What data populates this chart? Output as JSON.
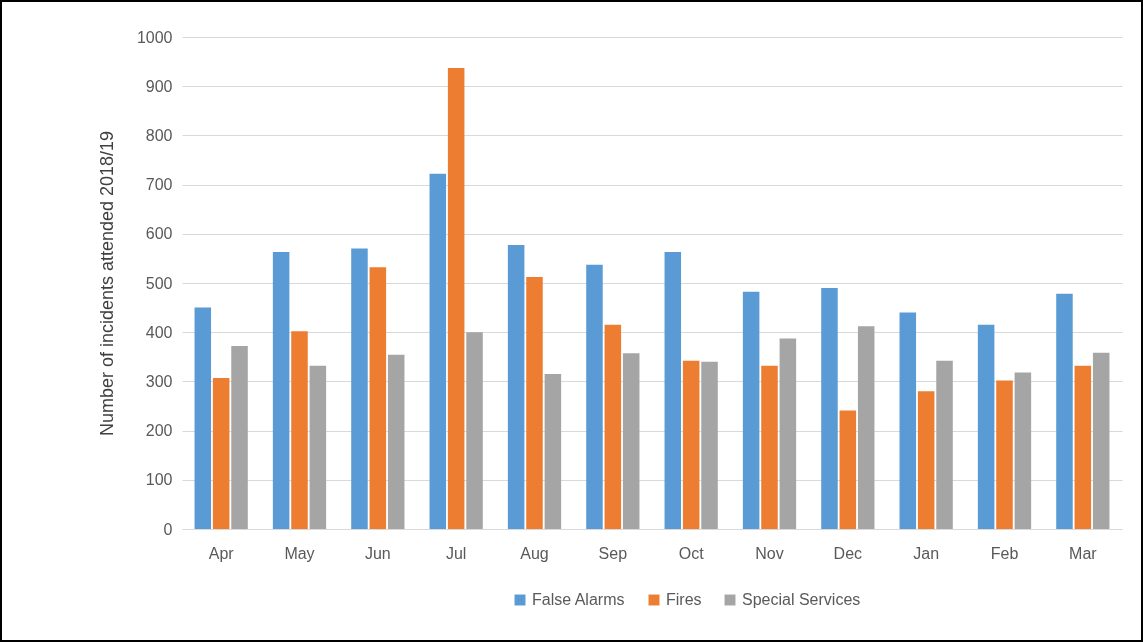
{
  "chart_data": {
    "type": "bar",
    "ylabel": "Number of incidents attended 2018/19",
    "categories": [
      "Apr",
      "May",
      "Jun",
      "Jul",
      "Aug",
      "Sep",
      "Oct",
      "Nov",
      "Dec",
      "Jan",
      "Feb",
      "Mar"
    ],
    "series": [
      {
        "name": "False Alarms",
        "color": "#5b9bd5",
        "values": [
          450,
          563,
          570,
          722,
          577,
          537,
          563,
          482,
          490,
          440,
          415,
          478
        ]
      },
      {
        "name": "Fires",
        "color": "#ed7d31",
        "values": [
          307,
          402,
          532,
          937,
          512,
          415,
          342,
          332,
          241,
          280,
          302,
          332
        ]
      },
      {
        "name": "Special Services",
        "color": "#a5a5a5",
        "values": [
          372,
          332,
          354,
          400,
          315,
          357,
          340,
          387,
          412,
          342,
          318,
          358
        ]
      }
    ],
    "ylim": [
      0,
      1000
    ],
    "yticks": [
      0,
      100,
      200,
      300,
      400,
      500,
      600,
      700,
      800,
      900,
      1000
    ],
    "grid": "y",
    "legend": "bottom"
  }
}
